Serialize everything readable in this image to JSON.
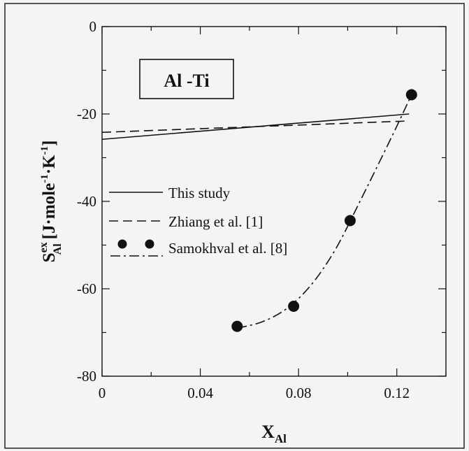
{
  "chart_data": {
    "type": "line",
    "title": "Al -Ti",
    "xlabel": {
      "main": "X",
      "sub": "Al"
    },
    "ylabel": {
      "main": "S",
      "sub": "Al",
      "sup": "ex",
      "units": "[J·mole",
      "units_sup1": "-1",
      "units_mid": "·K",
      "units_sup2": "-1",
      "units_end": "]"
    },
    "xlim": [
      0,
      0.14
    ],
    "ylim": [
      -80,
      0
    ],
    "x_ticks": [
      {
        "value": 0,
        "label": "0"
      },
      {
        "value": 0.04,
        "label": "0.04"
      },
      {
        "value": 0.08,
        "label": "0.08"
      },
      {
        "value": 0.12,
        "label": "0.12"
      }
    ],
    "y_ticks": [
      {
        "value": 0,
        "label": "0"
      },
      {
        "value": -20,
        "label": "-20"
      },
      {
        "value": -40,
        "label": "-40"
      },
      {
        "value": -60,
        "label": "-60"
      },
      {
        "value": -80,
        "label": "-80"
      }
    ],
    "x_minor_step": 0.02,
    "y_minor_step": 10,
    "grid": false,
    "legend_position": "center-left",
    "series": [
      {
        "name": "This study",
        "style": "solid",
        "x": [
          0,
          0.125
        ],
        "y": [
          -25.8,
          -20
        ]
      },
      {
        "name": "Zhiang et al. [1]",
        "style": "dashed",
        "x": [
          0,
          0.125
        ],
        "y": [
          -24.2,
          -21.6
        ]
      },
      {
        "name": "Samokhval et al. [8]",
        "style": "dash-dot",
        "markers": "filled-circle",
        "x": [
          0.055,
          0.078,
          0.101,
          0.126
        ],
        "y": [
          -68.6,
          -64.0,
          -44.4,
          -15.6
        ],
        "curve_x": [
          0.055,
          0.065,
          0.075,
          0.085,
          0.095,
          0.105,
          0.115,
          0.12,
          0.126
        ],
        "curve_y": [
          -69.0,
          -67.6,
          -64.6,
          -59.2,
          -51.0,
          -40.0,
          -28.6,
          -22.8,
          -15.6
        ]
      }
    ],
    "colors": {
      "ink": "#111111",
      "background": "#f4f4f2"
    }
  }
}
